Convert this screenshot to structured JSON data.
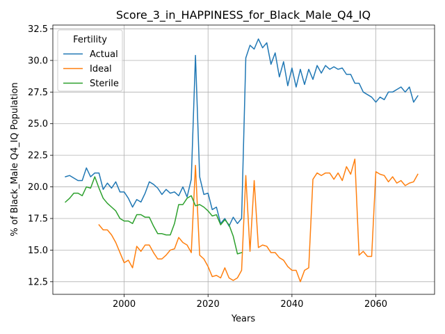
{
  "chart_data": {
    "type": "line",
    "title": "Score_3_in_HAPPINESS_for_Black_Male_Q4_IQ",
    "xlabel": "Years",
    "ylabel": "% of Black_Male Q4_IQ Population",
    "xlim": [
      1983,
      2074
    ],
    "ylim": [
      11.5,
      32.8
    ],
    "xticks": [
      2000,
      2020,
      2040,
      2060
    ],
    "xtick_labels": [
      "2000",
      "2020",
      "2040",
      "2060"
    ],
    "yticks": [
      12.5,
      15.0,
      17.5,
      20.0,
      22.5,
      25.0,
      27.5,
      30.0,
      32.5
    ],
    "ytick_labels": [
      "12.5",
      "15.0",
      "17.5",
      "20.0",
      "22.5",
      "25.0",
      "27.5",
      "30.0",
      "32.5"
    ],
    "grid": true,
    "legend": {
      "title": "Fertility",
      "placement": "top-left"
    },
    "series": [
      {
        "name": "Actual",
        "color": "#1f77b4",
        "x": [
          1986,
          1987,
          1988,
          1989,
          1990,
          1991,
          1992,
          1993,
          1994,
          1995,
          1996,
          1997,
          1998,
          1999,
          2000,
          2001,
          2002,
          2003,
          2004,
          2005,
          2006,
          2007,
          2008,
          2009,
          2010,
          2011,
          2012,
          2013,
          2014,
          2015,
          2016,
          2017,
          2018,
          2019,
          2020,
          2021,
          2022,
          2023,
          2024,
          2025,
          2026,
          2027,
          2028,
          2029,
          2030,
          2031,
          2032,
          2033,
          2034,
          2035,
          2036,
          2037,
          2038,
          2039,
          2040,
          2041,
          2042,
          2043,
          2044,
          2045,
          2046,
          2047,
          2048,
          2049,
          2050,
          2051,
          2052,
          2053,
          2054,
          2055,
          2056,
          2057,
          2058,
          2059,
          2060,
          2061,
          2062,
          2063,
          2064,
          2065,
          2066,
          2067,
          2068,
          2069,
          2070
        ],
        "values": [
          20.8,
          20.9,
          20.7,
          20.5,
          20.5,
          21.5,
          20.8,
          21.1,
          21.1,
          19.8,
          20.3,
          19.9,
          20.4,
          19.6,
          19.6,
          19.1,
          18.4,
          19.0,
          18.8,
          19.5,
          20.4,
          20.2,
          19.9,
          19.4,
          19.8,
          19.5,
          19.6,
          19.3,
          20.0,
          19.2,
          20.6,
          30.4,
          20.8,
          19.4,
          19.5,
          18.2,
          18.4,
          17.1,
          17.5,
          16.9,
          17.6,
          17.1,
          17.5,
          30.2,
          31.2,
          30.9,
          31.7,
          31.0,
          31.4,
          29.7,
          30.6,
          28.7,
          29.9,
          28.0,
          29.4,
          27.9,
          29.3,
          28.1,
          29.3,
          28.5,
          29.6,
          29.0,
          29.6,
          29.3,
          29.5,
          29.3,
          29.4,
          28.9,
          28.9,
          28.2,
          28.2,
          27.5,
          27.3,
          27.1,
          26.7,
          27.1,
          26.9,
          27.5,
          27.5,
          27.7,
          27.9,
          27.5,
          27.9,
          26.7,
          27.2
        ]
      },
      {
        "name": "Ideal",
        "color": "#ff7f0e",
        "x": [
          1994,
          1995,
          1996,
          1997,
          1998,
          1999,
          2000,
          2001,
          2002,
          2003,
          2004,
          2005,
          2006,
          2007,
          2008,
          2009,
          2010,
          2011,
          2012,
          2013,
          2014,
          2015,
          2016,
          2017,
          2018,
          2019,
          2020,
          2021,
          2022,
          2023,
          2024,
          2025,
          2026,
          2027,
          2028,
          2029,
          2030,
          2031,
          2032,
          2033,
          2034,
          2035,
          2036,
          2037,
          2038,
          2039,
          2040,
          2041,
          2042,
          2043,
          2044,
          2045,
          2046,
          2047,
          2048,
          2049,
          2050,
          2051,
          2052,
          2053,
          2054,
          2055,
          2056,
          2057,
          2058,
          2059,
          2060,
          2061,
          2062,
          2063,
          2064,
          2065,
          2066,
          2067,
          2068,
          2069,
          2070
        ],
        "values": [
          17.0,
          16.6,
          16.6,
          16.2,
          15.6,
          14.8,
          14.0,
          14.2,
          13.6,
          15.3,
          14.9,
          15.4,
          15.4,
          14.8,
          14.3,
          14.3,
          14.6,
          15.0,
          15.1,
          16.0,
          15.6,
          15.4,
          14.8,
          21.7,
          14.6,
          14.3,
          13.7,
          12.9,
          13.0,
          12.8,
          13.6,
          12.8,
          12.6,
          12.8,
          13.4,
          20.9,
          14.9,
          20.5,
          15.2,
          15.4,
          15.3,
          14.8,
          14.8,
          14.4,
          14.2,
          13.7,
          13.4,
          13.4,
          12.5,
          13.4,
          13.6,
          20.6,
          21.1,
          20.9,
          21.1,
          21.1,
          20.6,
          21.1,
          20.5,
          21.6,
          21.0,
          22.2,
          14.6,
          14.9,
          14.5,
          14.5,
          21.2,
          21.0,
          20.9,
          20.4,
          20.8,
          20.3,
          20.5,
          20.1,
          20.3,
          20.4,
          21.0
        ]
      },
      {
        "name": "Sterile",
        "color": "#2ca02c",
        "x": [
          1986,
          1987,
          1988,
          1989,
          1990,
          1991,
          1992,
          1993,
          1994,
          1995,
          1996,
          1997,
          1998,
          1999,
          2000,
          2001,
          2002,
          2003,
          2004,
          2005,
          2006,
          2007,
          2008,
          2009,
          2010,
          2011,
          2012,
          2013,
          2014,
          2015,
          2016,
          2017,
          2018,
          2019,
          2020,
          2021,
          2022,
          2023,
          2024,
          2025,
          2026,
          2027,
          2028
        ],
        "values": [
          18.8,
          19.1,
          19.5,
          19.5,
          19.3,
          20.0,
          19.9,
          20.8,
          19.9,
          19.1,
          18.7,
          18.4,
          18.1,
          17.5,
          17.3,
          17.3,
          17.1,
          17.8,
          17.8,
          17.6,
          17.6,
          16.9,
          16.3,
          16.3,
          16.2,
          16.2,
          17.1,
          18.6,
          18.6,
          19.1,
          19.3,
          18.5,
          18.6,
          18.4,
          18.1,
          17.7,
          17.8,
          17.0,
          17.4,
          17.0,
          16.1,
          14.7,
          14.8
        ]
      }
    ]
  }
}
